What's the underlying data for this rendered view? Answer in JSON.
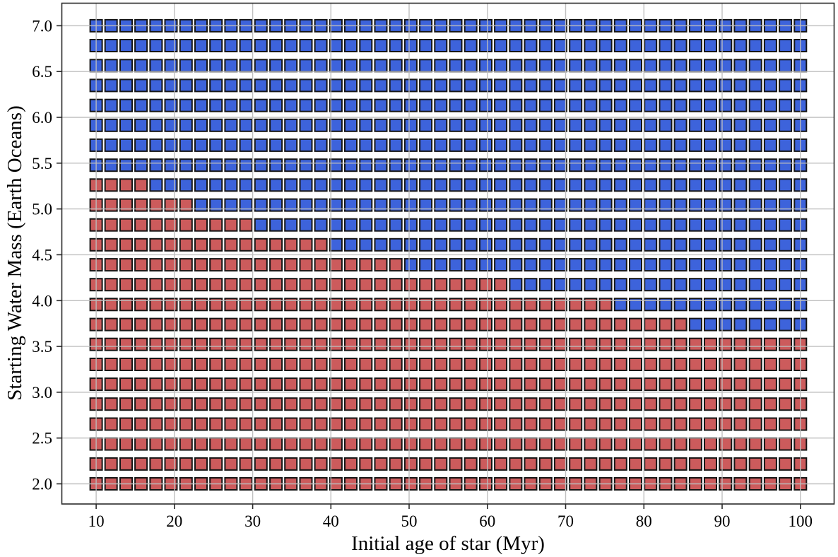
{
  "figure": {
    "background": "#ffffff"
  },
  "chart_data": {
    "type": "scatter",
    "marker_shape": "square",
    "title": "",
    "xlabel": "Initial age of star (Myr)",
    "ylabel": "Starting Water Mass (Earth Oceans)",
    "grid": true,
    "legend": false,
    "xlim": [
      5.57,
      104.31
    ],
    "ylim": [
      1.78,
      7.25
    ],
    "xticks": [
      10,
      20,
      30,
      40,
      50,
      60,
      70,
      80,
      90,
      100
    ],
    "xtick_labels": [
      "10",
      "20",
      "30",
      "40",
      "50",
      "60",
      "70",
      "80",
      "90",
      "100"
    ],
    "yticks": [
      2.0,
      2.5,
      3.0,
      3.5,
      4.0,
      4.5,
      5.0,
      5.5,
      6.0,
      6.5,
      7.0
    ],
    "ytick_labels": [
      "2.0",
      "2.5",
      "3.0",
      "3.5",
      "4.0",
      "4.5",
      "5.0",
      "5.5",
      "6.0",
      "6.5",
      "7.0"
    ],
    "colors": {
      "red_marker": "#CC5B5C",
      "blue_marker": "#3D63DB",
      "marker_edge": "#161616",
      "gridline": "#bdbdbd",
      "spine": "#2a2a2a"
    },
    "x_values_myr": [
      10.0,
      11.91,
      13.83,
      15.74,
      17.66,
      19.57,
      21.49,
      23.4,
      25.32,
      27.23,
      29.15,
      31.06,
      32.98,
      34.89,
      36.81,
      38.72,
      40.64,
      42.55,
      44.47,
      46.38,
      48.3,
      50.21,
      52.13,
      54.04,
      55.96,
      57.87,
      59.79,
      61.7,
      63.62,
      65.53,
      67.45,
      69.36,
      71.28,
      73.19,
      75.11,
      77.02,
      78.94,
      80.85,
      82.77,
      84.68,
      86.6,
      88.51,
      90.43,
      92.34,
      94.26,
      96.17,
      98.09,
      100.0
    ],
    "y_values_oceans": [
      7.0,
      6.783,
      6.565,
      6.348,
      6.13,
      5.913,
      5.696,
      5.478,
      5.261,
      5.043,
      4.826,
      4.609,
      4.391,
      4.174,
      3.957,
      3.739,
      3.522,
      3.304,
      3.087,
      2.87,
      2.652,
      2.435,
      2.217,
      2.0
    ],
    "red_count_per_row": [
      0,
      0,
      0,
      0,
      0,
      0,
      0,
      0,
      4,
      7,
      11,
      16,
      21,
      28,
      35,
      40,
      48,
      48,
      48,
      48,
      48,
      48,
      48,
      48
    ],
    "series": [
      {
        "name": "red squares",
        "color": "#CC5B5C",
        "region": "lower-left (low starting water mass, young star age)"
      },
      {
        "name": "blue squares",
        "color": "#3D63DB",
        "region": "upper-right (high starting water mass, older star age)"
      }
    ]
  }
}
